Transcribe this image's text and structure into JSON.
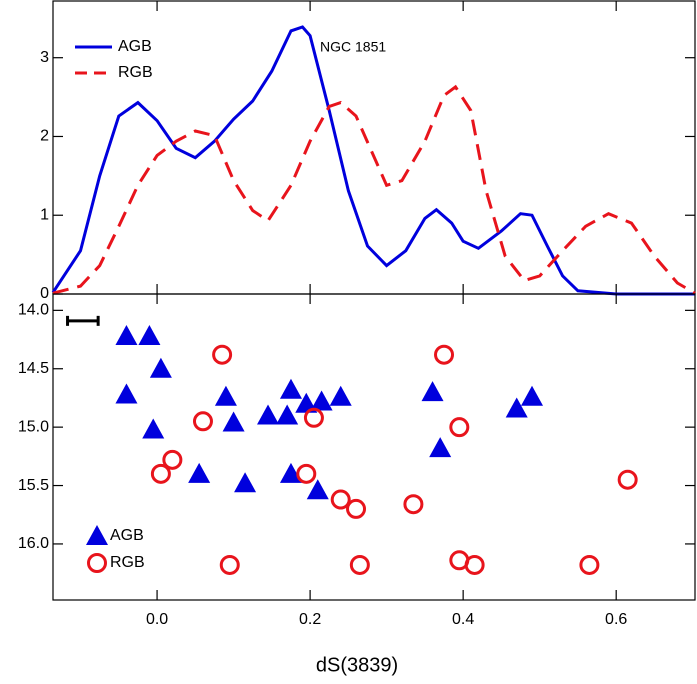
{
  "chart_data": [
    {
      "type": "line",
      "annotation": "NGC 1851",
      "xlim": [
        -0.136,
        0.703
      ],
      "ylim": [
        0,
        3.72
      ],
      "yticks": [
        0,
        1,
        2,
        3
      ],
      "series": [
        {
          "name": "AGB",
          "color": "#0000dd",
          "dash": false,
          "x": [
            -0.136,
            -0.1,
            -0.075,
            -0.05,
            -0.025,
            0.0,
            0.025,
            0.05,
            0.075,
            0.1,
            0.125,
            0.15,
            0.175,
            0.19,
            0.2,
            0.225,
            0.25,
            0.275,
            0.3,
            0.325,
            0.35,
            0.365,
            0.385,
            0.4,
            0.42,
            0.45,
            0.475,
            0.49,
            0.51,
            0.53,
            0.55,
            0.6,
            0.703
          ],
          "values": [
            0.02,
            0.55,
            1.5,
            2.26,
            2.43,
            2.2,
            1.85,
            1.73,
            1.94,
            2.22,
            2.45,
            2.83,
            3.34,
            3.39,
            3.28,
            2.33,
            1.31,
            0.61,
            0.36,
            0.55,
            0.96,
            1.07,
            0.9,
            0.67,
            0.58,
            0.8,
            1.02,
            1.0,
            0.61,
            0.23,
            0.04,
            0,
            0
          ]
        },
        {
          "name": "RGB",
          "color": "#e8141c",
          "dash": true,
          "x": [
            -0.136,
            -0.1,
            -0.075,
            -0.05,
            -0.025,
            0.0,
            0.025,
            0.05,
            0.075,
            0.1,
            0.125,
            0.145,
            0.175,
            0.2,
            0.225,
            0.24,
            0.26,
            0.28,
            0.3,
            0.32,
            0.35,
            0.375,
            0.39,
            0.41,
            0.43,
            0.455,
            0.48,
            0.5,
            0.53,
            0.56,
            0.59,
            0.62,
            0.65,
            0.68,
            0.703
          ],
          "values": [
            0.01,
            0.1,
            0.36,
            0.86,
            1.38,
            1.76,
            1.94,
            2.07,
            2.01,
            1.44,
            1.06,
            0.93,
            1.38,
            1.94,
            2.38,
            2.43,
            2.26,
            1.82,
            1.38,
            1.44,
            1.94,
            2.52,
            2.63,
            2.33,
            1.31,
            0.48,
            0.17,
            0.23,
            0.55,
            0.86,
            1.02,
            0.9,
            0.48,
            0.14,
            0.01
          ]
        }
      ]
    },
    {
      "type": "scatter",
      "x_label": "dS(3839)",
      "xlim": [
        -0.136,
        0.703
      ],
      "ylim": [
        16.48,
        13.86
      ],
      "inverted_y": true,
      "xticks": [
        {
          "value": 0,
          "label": "0.0"
        },
        0.2,
        0.4,
        0.6
      ],
      "yticks": [
        {
          "value": 14,
          "label": "14.0"
        },
        14.5,
        {
          "value": 15,
          "label": "15.0"
        },
        15.5,
        {
          "value": 16,
          "label": "16.0"
        }
      ],
      "error_bar": {
        "x": -0.097,
        "xerr": 0.02,
        "y": 14.09
      },
      "series": [
        {
          "name": "AGB",
          "color": "#0000dd",
          "marker": "triangle",
          "x": [
            -0.04,
            -0.01,
            0.005,
            -0.04,
            -0.005,
            0.055,
            0.09,
            0.1,
            0.115,
            0.145,
            0.17,
            0.175,
            0.175,
            0.195,
            0.215,
            0.24,
            0.21,
            0.36,
            0.37,
            0.47,
            0.49
          ],
          "values": [
            14.22,
            14.22,
            14.5,
            14.72,
            15.02,
            15.4,
            14.74,
            14.96,
            15.48,
            14.9,
            14.9,
            14.68,
            15.4,
            14.8,
            14.78,
            14.74,
            15.54,
            14.7,
            15.18,
            14.84,
            14.74
          ]
        },
        {
          "name": "RGB",
          "color": "#e8141c",
          "marker": "circle",
          "x": [
            0.085,
            0.06,
            0.02,
            0.005,
            0.095,
            0.195,
            0.205,
            0.24,
            0.26,
            0.265,
            0.335,
            0.375,
            0.395,
            0.395,
            0.415,
            0.565,
            0.615
          ],
          "values": [
            14.38,
            14.95,
            15.28,
            15.4,
            16.18,
            15.4,
            14.92,
            15.62,
            15.7,
            16.18,
            15.66,
            14.38,
            15.0,
            16.14,
            16.18,
            16.18,
            15.45
          ]
        }
      ]
    }
  ]
}
